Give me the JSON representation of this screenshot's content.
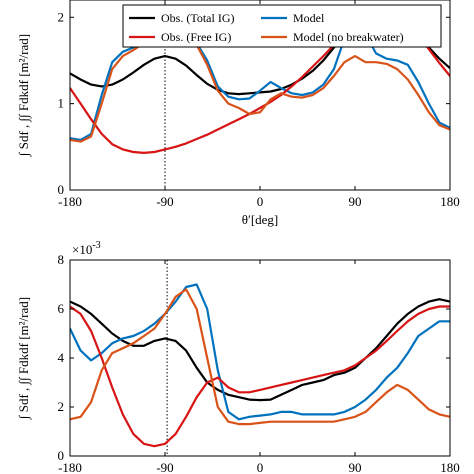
{
  "chart_data": [
    {
      "type": "line",
      "xlabel": "θ′[deg]",
      "ylabel": "∫ Sdf , ∫∫ Fdkdf [m²/rad]",
      "xlim": [
        -180,
        180
      ],
      "ylim": [
        0,
        2.2
      ],
      "xticks": [
        -180,
        -90,
        0,
        90,
        180
      ],
      "xtick_labels": [
        "-180",
        "-90",
        "0",
        "90",
        "180"
      ],
      "yticks": [
        0,
        1,
        2
      ],
      "ytick_labels": [
        "0",
        "1",
        "2"
      ],
      "exponent_label": "",
      "reference_line_x": -90,
      "legend": {
        "placement": "top",
        "entries": [
          {
            "name": "Obs. (Total IG)",
            "color": "#000000"
          },
          {
            "name": "Model",
            "color": "#0072bd"
          },
          {
            "name": "Obs. (Free IG)",
            "color": "#d81414"
          },
          {
            "name": "Model (no breakwater)",
            "color": "#d95319"
          }
        ]
      },
      "series": [
        {
          "name": "Obs. (Total IG)",
          "color": "#000000",
          "x": [
            -180,
            -170,
            -160,
            -150,
            -140,
            -130,
            -120,
            -110,
            -100,
            -90,
            -80,
            -70,
            -60,
            -50,
            -40,
            -30,
            -20,
            -10,
            0,
            10,
            20,
            30,
            40,
            50,
            60,
            70,
            80,
            90,
            100,
            110,
            120,
            130,
            140,
            150,
            160,
            170,
            180
          ],
          "y": [
            1.35,
            1.28,
            1.22,
            1.2,
            1.22,
            1.28,
            1.36,
            1.45,
            1.52,
            1.55,
            1.52,
            1.44,
            1.33,
            1.23,
            1.16,
            1.12,
            1.11,
            1.12,
            1.13,
            1.14,
            1.17,
            1.22,
            1.29,
            1.38,
            1.5,
            1.65,
            1.8,
            1.92,
            2.0,
            2.05,
            2.05,
            2.0,
            1.9,
            1.78,
            1.65,
            1.52,
            1.41
          ]
        },
        {
          "name": "Model",
          "color": "#0072bd",
          "x": [
            -180,
            -170,
            -160,
            -150,
            -140,
            -130,
            -120,
            -110,
            -100,
            -90,
            -80,
            -70,
            -60,
            -50,
            -40,
            -30,
            -20,
            -10,
            0,
            10,
            20,
            30,
            40,
            50,
            60,
            70,
            80,
            90,
            100,
            110,
            120,
            130,
            140,
            150,
            160,
            170,
            180
          ],
          "y": [
            0.6,
            0.58,
            0.65,
            1.1,
            1.48,
            1.6,
            1.65,
            1.72,
            1.8,
            1.82,
            1.82,
            1.78,
            1.7,
            1.5,
            1.2,
            1.08,
            1.05,
            1.06,
            1.15,
            1.25,
            1.18,
            1.12,
            1.1,
            1.13,
            1.22,
            1.4,
            1.75,
            1.92,
            1.8,
            1.58,
            1.52,
            1.5,
            1.45,
            1.25,
            1.0,
            0.78,
            0.72
          ]
        },
        {
          "name": "Obs. (Free IG)",
          "color": "#d81414",
          "x": [
            -180,
            -170,
            -160,
            -150,
            -140,
            -130,
            -120,
            -110,
            -100,
            -90,
            -80,
            -70,
            -60,
            -50,
            -40,
            -30,
            -20,
            -10,
            0,
            10,
            20,
            30,
            40,
            50,
            60,
            70,
            80,
            90,
            100,
            110,
            120,
            130,
            140,
            150,
            160,
            170,
            180
          ],
          "y": [
            1.18,
            1.0,
            0.82,
            0.65,
            0.53,
            0.47,
            0.44,
            0.43,
            0.44,
            0.47,
            0.5,
            0.54,
            0.59,
            0.64,
            0.7,
            0.76,
            0.82,
            0.88,
            0.95,
            1.02,
            1.1,
            1.2,
            1.31,
            1.43,
            1.55,
            1.68,
            1.8,
            1.9,
            1.97,
            2.01,
            2.02,
            1.98,
            1.9,
            1.78,
            1.63,
            1.47,
            1.32
          ]
        },
        {
          "name": "Model (no breakwater)",
          "color": "#d95319",
          "x": [
            -180,
            -170,
            -160,
            -150,
            -140,
            -130,
            -120,
            -110,
            -100,
            -90,
            -80,
            -70,
            -60,
            -50,
            -40,
            -30,
            -20,
            -10,
            0,
            10,
            20,
            30,
            40,
            50,
            60,
            70,
            80,
            90,
            100,
            110,
            120,
            130,
            140,
            150,
            160,
            170,
            180
          ],
          "y": [
            0.58,
            0.56,
            0.62,
            1.0,
            1.4,
            1.55,
            1.62,
            1.7,
            1.78,
            1.8,
            1.8,
            1.76,
            1.68,
            1.45,
            1.15,
            1.0,
            0.95,
            0.88,
            0.9,
            1.05,
            1.12,
            1.08,
            1.07,
            1.1,
            1.18,
            1.32,
            1.48,
            1.55,
            1.48,
            1.48,
            1.46,
            1.4,
            1.28,
            1.1,
            0.9,
            0.75,
            0.7
          ]
        }
      ]
    },
    {
      "type": "line",
      "xlabel": "",
      "ylabel": "∫ Sdf , ∫∫ Fdkdf [m²/rad]",
      "xlim": [
        -180,
        180
      ],
      "ylim": [
        0,
        0.008
      ],
      "xticks": [
        -180,
        -90,
        0,
        90,
        180
      ],
      "xtick_labels": [
        "-180",
        "-90",
        "0",
        "90",
        "180"
      ],
      "yticks": [
        0,
        0.002,
        0.004,
        0.006,
        0.008
      ],
      "ytick_labels": [
        "0",
        "2",
        "4",
        "6",
        "8"
      ],
      "exponent_label": "×10",
      "exponent_power": "-3",
      "reference_line_x": -88,
      "series": [
        {
          "name": "Obs. (Total IG)",
          "color": "#000000",
          "x": [
            -180,
            -170,
            -160,
            -150,
            -140,
            -130,
            -120,
            -110,
            -100,
            -90,
            -80,
            -70,
            -60,
            -50,
            -40,
            -30,
            -20,
            -10,
            0,
            10,
            20,
            30,
            40,
            50,
            60,
            70,
            80,
            90,
            100,
            110,
            120,
            130,
            140,
            150,
            160,
            170,
            180
          ],
          "y": [
            0.0063,
            0.0061,
            0.0058,
            0.0054,
            0.005,
            0.0047,
            0.0045,
            0.0045,
            0.0047,
            0.0048,
            0.0047,
            0.0043,
            0.0036,
            0.003,
            0.0027,
            0.0025,
            0.0024,
            0.0023,
            0.00228,
            0.0023,
            0.0025,
            0.0027,
            0.0029,
            0.003,
            0.0031,
            0.0033,
            0.0034,
            0.0036,
            0.004,
            0.0044,
            0.0049,
            0.0054,
            0.0058,
            0.0061,
            0.0063,
            0.0064,
            0.0063
          ]
        },
        {
          "name": "Model",
          "color": "#0072bd",
          "x": [
            -180,
            -170,
            -160,
            -150,
            -140,
            -130,
            -120,
            -110,
            -100,
            -90,
            -80,
            -70,
            -60,
            -50,
            -40,
            -30,
            -20,
            -10,
            0,
            10,
            20,
            30,
            40,
            50,
            60,
            70,
            80,
            90,
            100,
            110,
            120,
            130,
            140,
            150,
            160,
            170,
            180
          ],
          "y": [
            0.0052,
            0.0043,
            0.0039,
            0.0042,
            0.0046,
            0.0048,
            0.0049,
            0.0051,
            0.0054,
            0.0058,
            0.0063,
            0.0069,
            0.007,
            0.006,
            0.0035,
            0.0018,
            0.0015,
            0.0016,
            0.00165,
            0.0017,
            0.0018,
            0.0018,
            0.0017,
            0.0017,
            0.0017,
            0.0017,
            0.0018,
            0.002,
            0.0023,
            0.0027,
            0.0032,
            0.0036,
            0.0042,
            0.0049,
            0.0052,
            0.0055,
            0.0055
          ]
        },
        {
          "name": "Obs. (Free IG)",
          "color": "#d81414",
          "x": [
            -180,
            -170,
            -160,
            -150,
            -140,
            -130,
            -120,
            -110,
            -100,
            -90,
            -80,
            -70,
            -60,
            -50,
            -40,
            -30,
            -20,
            -10,
            0,
            10,
            20,
            30,
            40,
            50,
            60,
            70,
            80,
            90,
            100,
            110,
            120,
            130,
            140,
            150,
            160,
            170,
            180
          ],
          "y": [
            0.0061,
            0.0058,
            0.0051,
            0.004,
            0.0028,
            0.0017,
            0.0009,
            0.0005,
            0.0004,
            0.0005,
            0.0009,
            0.0016,
            0.0024,
            0.003,
            0.0032,
            0.0028,
            0.0026,
            0.0026,
            0.0027,
            0.0028,
            0.0029,
            0.003,
            0.0031,
            0.0032,
            0.0033,
            0.0034,
            0.0035,
            0.0037,
            0.004,
            0.0043,
            0.0047,
            0.0051,
            0.0055,
            0.0058,
            0.006,
            0.0061,
            0.0061
          ]
        },
        {
          "name": "Model (no breakwater)",
          "color": "#d95319",
          "x": [
            -180,
            -170,
            -160,
            -150,
            -140,
            -130,
            -120,
            -110,
            -100,
            -90,
            -80,
            -70,
            -60,
            -50,
            -40,
            -30,
            -20,
            -10,
            0,
            10,
            20,
            30,
            40,
            50,
            60,
            70,
            80,
            90,
            100,
            110,
            120,
            130,
            140,
            150,
            160,
            170,
            180
          ],
          "y": [
            0.0015,
            0.0016,
            0.0022,
            0.0035,
            0.0042,
            0.0044,
            0.0046,
            0.0049,
            0.0052,
            0.0058,
            0.0065,
            0.0068,
            0.006,
            0.004,
            0.002,
            0.0014,
            0.0013,
            0.0013,
            0.00135,
            0.0014,
            0.0014,
            0.0014,
            0.0014,
            0.0014,
            0.0014,
            0.0014,
            0.0015,
            0.0016,
            0.0018,
            0.0022,
            0.0026,
            0.0029,
            0.0027,
            0.0023,
            0.0019,
            0.0017,
            0.0016
          ]
        }
      ]
    }
  ]
}
